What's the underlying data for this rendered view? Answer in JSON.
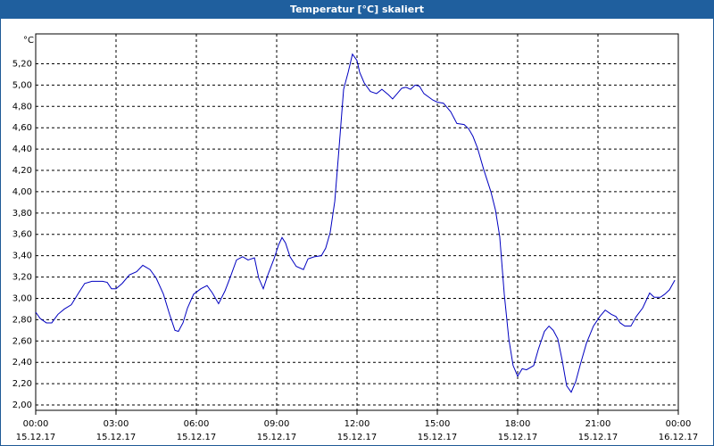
{
  "chart_data": {
    "type": "line",
    "title": "Temperatur [°C] skaliert",
    "y_unit": "°C",
    "x": [
      0,
      0.17,
      0.4,
      0.6,
      0.83,
      1.07,
      1.33,
      1.6,
      1.83,
      2.1,
      2.5,
      2.67,
      2.83,
      3.0,
      3.23,
      3.5,
      3.77,
      4.0,
      4.27,
      4.5,
      4.77,
      5.0,
      5.2,
      5.33,
      5.5,
      5.67,
      5.9,
      6.17,
      6.4,
      6.6,
      6.83,
      7.07,
      7.27,
      7.5,
      7.73,
      7.93,
      8.17,
      8.33,
      8.5,
      8.67,
      8.9,
      9.07,
      9.2,
      9.33,
      9.5,
      9.73,
      10.0,
      10.17,
      10.4,
      10.67,
      10.83,
      11.0,
      11.17,
      11.33,
      11.5,
      11.67,
      11.83,
      12.0,
      12.1,
      12.27,
      12.5,
      12.73,
      12.93,
      13.17,
      13.33,
      13.5,
      13.67,
      13.83,
      14.0,
      14.17,
      14.33,
      14.5,
      14.83,
      15.0,
      15.23,
      15.5,
      15.73,
      16.0,
      16.17,
      16.33,
      16.5,
      16.73,
      17.0,
      17.17,
      17.33,
      17.5,
      17.67,
      17.83,
      18.0,
      18.17,
      18.33,
      18.6,
      18.77,
      19.0,
      19.17,
      19.33,
      19.5,
      19.67,
      19.83,
      20.0,
      20.17,
      20.33,
      20.57,
      20.83,
      21.07,
      21.27,
      21.5,
      21.67,
      21.83,
      22.0,
      22.23,
      22.43,
      22.67,
      22.93,
      23.1,
      23.33,
      23.5,
      23.67,
      23.87
    ],
    "series": [
      {
        "name": "Temperatur",
        "color": "#0000c0",
        "values": [
          2.87,
          2.81,
          2.77,
          2.77,
          2.85,
          2.9,
          2.94,
          3.05,
          3.14,
          3.16,
          3.16,
          3.15,
          3.09,
          3.09,
          3.14,
          3.22,
          3.25,
          3.31,
          3.27,
          3.19,
          3.04,
          2.85,
          2.7,
          2.69,
          2.77,
          2.91,
          3.04,
          3.09,
          3.12,
          3.05,
          2.95,
          3.07,
          3.2,
          3.36,
          3.39,
          3.36,
          3.38,
          3.19,
          3.09,
          3.22,
          3.37,
          3.5,
          3.57,
          3.52,
          3.39,
          3.3,
          3.27,
          3.37,
          3.39,
          3.4,
          3.47,
          3.62,
          3.91,
          4.41,
          4.96,
          5.12,
          5.29,
          5.23,
          5.12,
          5.02,
          4.94,
          4.92,
          4.96,
          4.91,
          4.87,
          4.92,
          4.97,
          4.98,
          4.96,
          5.0,
          4.99,
          4.92,
          4.86,
          4.84,
          4.83,
          4.75,
          4.64,
          4.63,
          4.59,
          4.52,
          4.41,
          4.21,
          4.0,
          3.83,
          3.58,
          3.04,
          2.62,
          2.37,
          2.27,
          2.34,
          2.33,
          2.37,
          2.52,
          2.69,
          2.74,
          2.7,
          2.62,
          2.41,
          2.18,
          2.12,
          2.22,
          2.37,
          2.58,
          2.74,
          2.83,
          2.89,
          2.85,
          2.83,
          2.77,
          2.74,
          2.74,
          2.83,
          2.91,
          3.05,
          3.01,
          3.01,
          3.04,
          3.08,
          3.17
        ]
      }
    ],
    "xlim": [
      0,
      24
    ],
    "xticks": [
      {
        "value": 0,
        "label": "00:00",
        "date": "15.12.17"
      },
      {
        "value": 3,
        "label": "03:00",
        "date": "15.12.17"
      },
      {
        "value": 6,
        "label": "06:00",
        "date": "15.12.17"
      },
      {
        "value": 9,
        "label": "09:00",
        "date": "15.12.17"
      },
      {
        "value": 12,
        "label": "12:00",
        "date": "15.12.17"
      },
      {
        "value": 15,
        "label": "15:00",
        "date": "15.12.17"
      },
      {
        "value": 18,
        "label": "18:00",
        "date": "15.12.17"
      },
      {
        "value": 21,
        "label": "21:00",
        "date": "15.12.17"
      },
      {
        "value": 24,
        "label": "00:00",
        "date": "16.12.17"
      }
    ],
    "ylim": [
      1.95,
      5.48
    ],
    "yticks": [
      {
        "value": 2,
        "label": "2,00"
      },
      {
        "value": 2.2,
        "label": "2,20"
      },
      {
        "value": 2.4,
        "label": "2,40"
      },
      {
        "value": 2.6,
        "label": "2,60"
      },
      {
        "value": 2.8,
        "label": "2,80"
      },
      {
        "value": 3,
        "label": "3,00"
      },
      {
        "value": 3.2,
        "label": "3,20"
      },
      {
        "value": 3.4,
        "label": "3,40"
      },
      {
        "value": 3.6,
        "label": "3,60"
      },
      {
        "value": 3.8,
        "label": "3,80"
      },
      {
        "value": 4,
        "label": "4,00"
      },
      {
        "value": 4.2,
        "label": "4,20"
      },
      {
        "value": 4.4,
        "label": "4,40"
      },
      {
        "value": 4.6,
        "label": "4,60"
      },
      {
        "value": 4.8,
        "label": "4,80"
      },
      {
        "value": 5,
        "label": "5,00"
      },
      {
        "value": 5.2,
        "label": "5,20"
      }
    ],
    "grid": true
  }
}
